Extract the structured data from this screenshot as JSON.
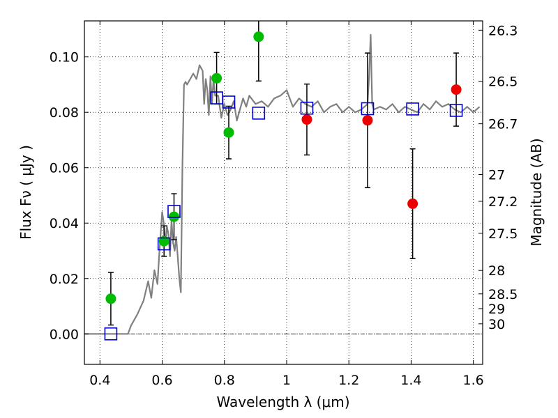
{
  "chart_data": {
    "type": "scatter",
    "xlabel": "Wavelength  λ (μm)",
    "ylabel": "Flux  Fν  ( μJy )",
    "ylabel_right": "Magnitude (AB)",
    "xlim": [
      0.35,
      1.63
    ],
    "ylim": [
      -0.011,
      0.113
    ],
    "grid": true,
    "x_ticks": [
      0.4,
      0.6,
      0.8,
      1.0,
      1.2,
      1.4,
      1.6
    ],
    "x_tick_labels": [
      "0.4",
      "0.6",
      "0.8",
      "1",
      "1.2",
      "1.4",
      "1.6"
    ],
    "y_ticks": [
      0.0,
      0.02,
      0.04,
      0.06,
      0.08,
      0.1
    ],
    "y_tick_labels": [
      "0.00",
      "0.02",
      "0.04",
      "0.06",
      "0.08",
      "0.10"
    ],
    "mag_ticks": [
      26.3,
      26.5,
      26.7,
      27,
      27.2,
      27.5,
      28,
      28.5,
      29,
      30
    ],
    "mag_tick_labels": [
      "26.3",
      "26.5",
      "26.7",
      "27",
      "27.2",
      "27.5",
      "28",
      "28.5",
      "29",
      "30"
    ],
    "zero_line": true,
    "series": [
      {
        "marker": "circle",
        "color": "#00bb00",
        "x": [
          0.435,
          0.606,
          0.638,
          0.775,
          0.814,
          0.91
        ],
        "y": [
          0.0127,
          0.0335,
          0.0423,
          0.0923,
          0.0727,
          0.1073
        ],
        "err": [
          0.0095,
          0.0055,
          0.0083,
          0.0093,
          0.0095,
          0.016
        ]
      },
      {
        "marker": "circle",
        "color": "#ee0000",
        "x": [
          1.065,
          1.26,
          1.405,
          1.545
        ],
        "y": [
          0.0774,
          0.0771,
          0.047,
          0.0882
        ],
        "err": [
          0.0128,
          0.0243,
          0.0198,
          0.0132
        ]
      },
      {
        "marker": "square",
        "color": "#0000cc",
        "x": [
          0.435,
          0.606,
          0.638,
          0.775,
          0.814,
          0.91,
          1.065,
          1.26,
          1.405,
          1.545
        ],
        "y": [
          0.0,
          0.0325,
          0.0442,
          0.0852,
          0.0837,
          0.0797,
          0.0815,
          0.0813,
          0.0812,
          0.0807
        ]
      },
      {
        "type": "line",
        "color": "#808080",
        "x": [
          0.35,
          0.49,
          0.5,
          0.52,
          0.54,
          0.555,
          0.565,
          0.575,
          0.585,
          0.59,
          0.595,
          0.6,
          0.605,
          0.61,
          0.615,
          0.62,
          0.625,
          0.63,
          0.635,
          0.64,
          0.645,
          0.65,
          0.655,
          0.66,
          0.665,
          0.67,
          0.675,
          0.68,
          0.685,
          0.69,
          0.7,
          0.71,
          0.72,
          0.73,
          0.735,
          0.74,
          0.745,
          0.75,
          0.755,
          0.76,
          0.765,
          0.77,
          0.78,
          0.79,
          0.8,
          0.81,
          0.82,
          0.83,
          0.84,
          0.85,
          0.86,
          0.87,
          0.88,
          0.9,
          0.92,
          0.94,
          0.96,
          0.98,
          1.0,
          1.02,
          1.04,
          1.06,
          1.08,
          1.1,
          1.12,
          1.14,
          1.16,
          1.18,
          1.2,
          1.22,
          1.24,
          1.26,
          1.265,
          1.27,
          1.275,
          1.28,
          1.3,
          1.32,
          1.34,
          1.36,
          1.38,
          1.4,
          1.42,
          1.44,
          1.46,
          1.48,
          1.5,
          1.52,
          1.54,
          1.56,
          1.58,
          1.6,
          1.62
        ],
        "y": [
          0.0,
          0.0,
          0.003,
          0.007,
          0.012,
          0.019,
          0.013,
          0.023,
          0.018,
          0.028,
          0.036,
          0.044,
          0.04,
          0.032,
          0.039,
          0.036,
          0.028,
          0.041,
          0.033,
          0.03,
          0.035,
          0.028,
          0.02,
          0.015,
          0.06,
          0.09,
          0.091,
          0.09,
          0.091,
          0.092,
          0.094,
          0.092,
          0.097,
          0.095,
          0.083,
          0.092,
          0.088,
          0.079,
          0.093,
          0.083,
          0.092,
          0.086,
          0.086,
          0.078,
          0.083,
          0.079,
          0.081,
          0.084,
          0.077,
          0.081,
          0.085,
          0.082,
          0.086,
          0.083,
          0.084,
          0.082,
          0.085,
          0.086,
          0.088,
          0.082,
          0.085,
          0.083,
          0.082,
          0.084,
          0.08,
          0.082,
          0.083,
          0.08,
          0.082,
          0.08,
          0.081,
          0.083,
          0.093,
          0.108,
          0.083,
          0.081,
          0.082,
          0.081,
          0.083,
          0.08,
          0.082,
          0.081,
          0.08,
          0.083,
          0.081,
          0.084,
          0.082,
          0.083,
          0.081,
          0.08,
          0.082,
          0.08,
          0.082
        ]
      }
    ]
  }
}
